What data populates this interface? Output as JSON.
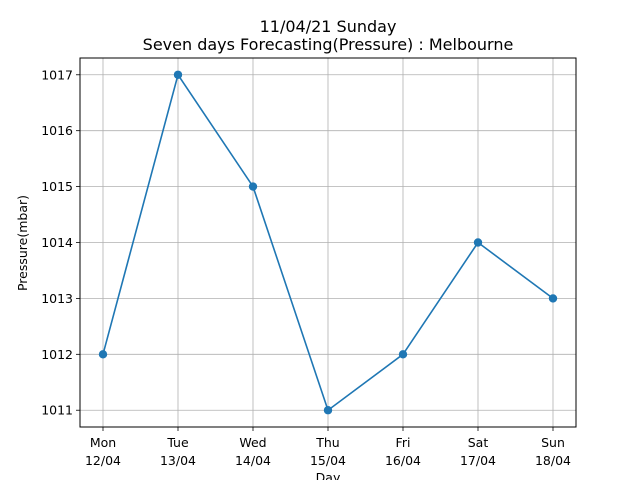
{
  "chart_data": {
    "type": "line",
    "title_line1": "11/04/21 Sunday",
    "title_line2": "Seven days Forecasting(Pressure) : Melbourne",
    "xlabel": "Day",
    "ylabel": "Pressure(mbar)",
    "categories": [
      {
        "day": "Mon",
        "date": "12/04"
      },
      {
        "day": "Tue",
        "date": "13/04"
      },
      {
        "day": "Wed",
        "date": "14/04"
      },
      {
        "day": "Thu",
        "date": "15/04"
      },
      {
        "day": "Fri",
        "date": "16/04"
      },
      {
        "day": "Sat",
        "date": "17/04"
      },
      {
        "day": "Sun",
        "date": "18/04"
      }
    ],
    "values": [
      1012,
      1017,
      1015,
      1011,
      1012,
      1014,
      1013
    ],
    "yticks": [
      1011,
      1012,
      1013,
      1014,
      1015,
      1016,
      1017
    ],
    "ylim": [
      1010.7,
      1017.3
    ],
    "grid": true,
    "line_color": "#1f77b4"
  }
}
